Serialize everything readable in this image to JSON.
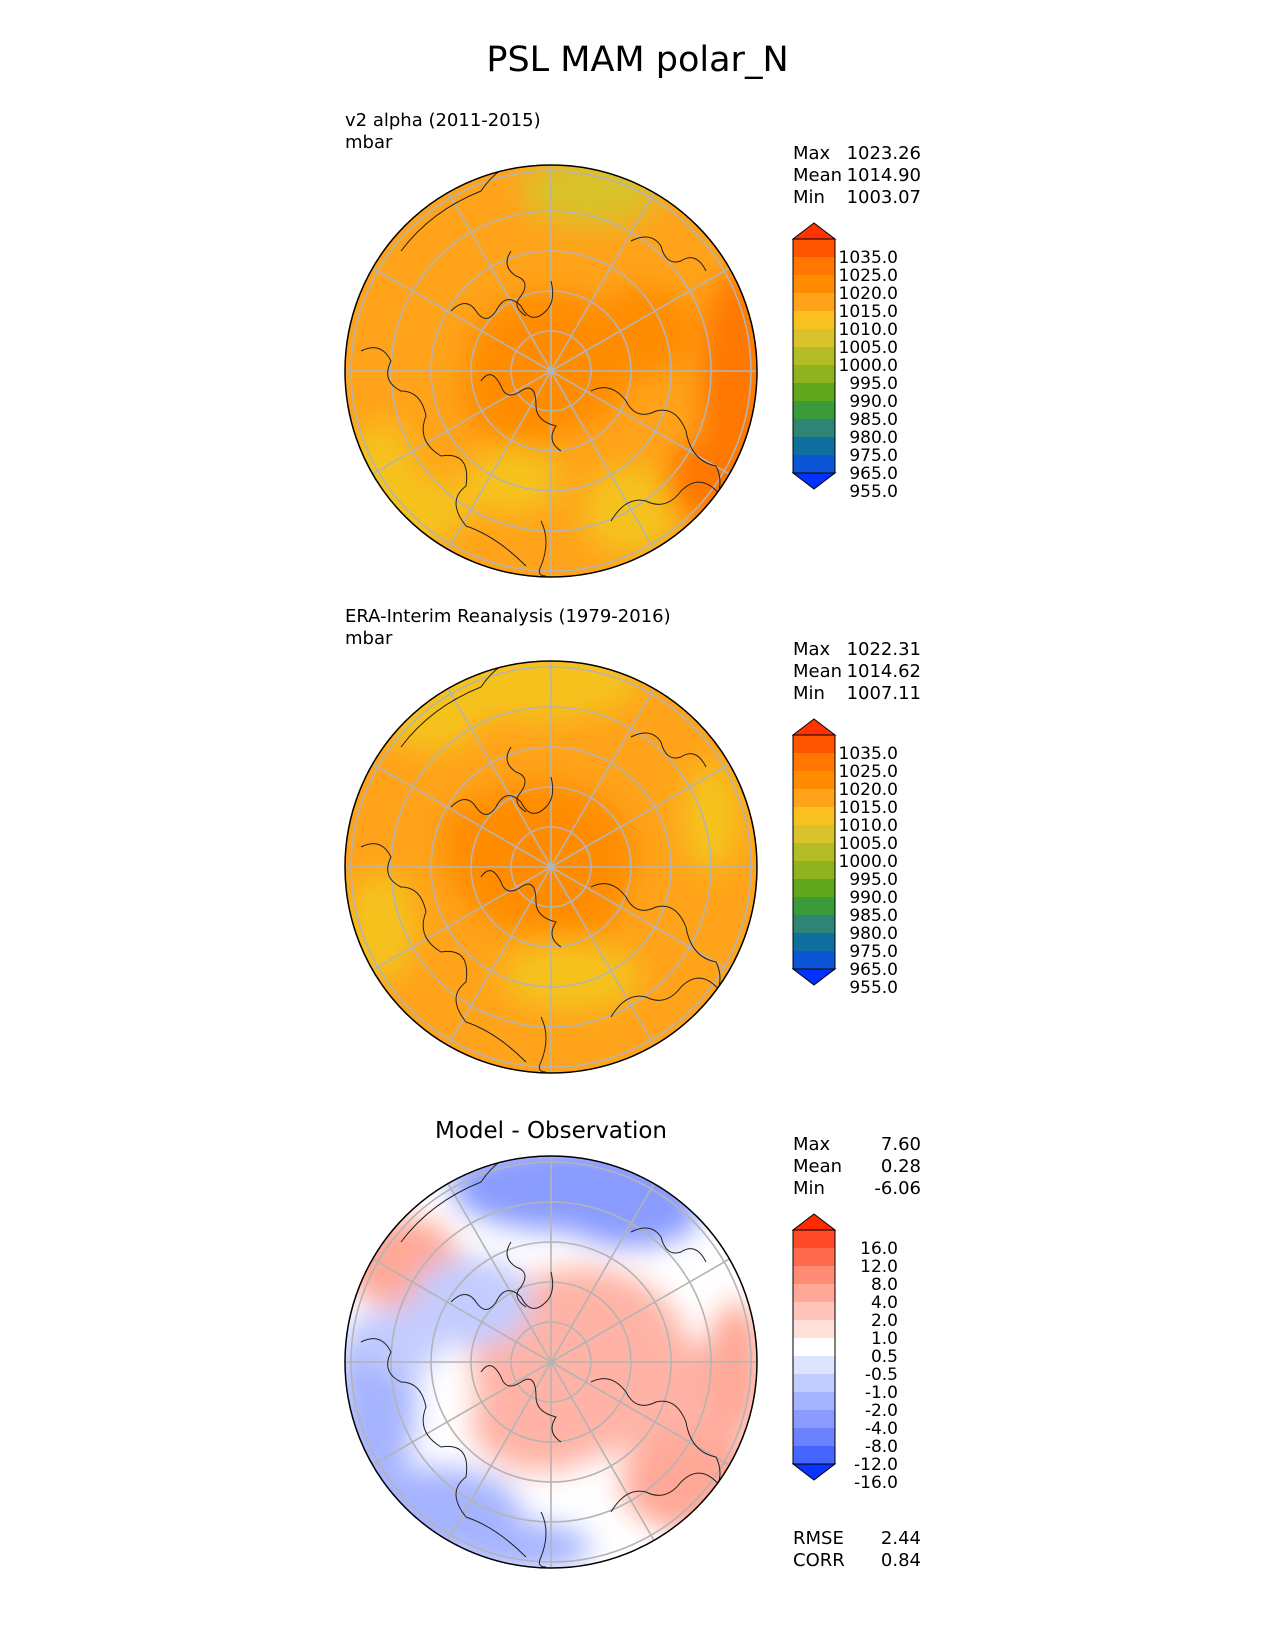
{
  "title": "PSL MAM polar_N",
  "panels": [
    {
      "label_line1": "v2 alpha (2011-2015)",
      "label_line2": "mbar",
      "stats": [
        {
          "name": "Max",
          "value": "1023.26"
        },
        {
          "name": "Mean",
          "value": "1014.90"
        },
        {
          "name": "Min",
          "value": "1003.07"
        }
      ]
    },
    {
      "label_line1": "ERA-Interim Reanalysis (1979-2016)",
      "label_line2": "mbar",
      "stats": [
        {
          "name": "Max",
          "value": "1022.31"
        },
        {
          "name": "Mean",
          "value": "1014.62"
        },
        {
          "name": "Min",
          "value": "1007.11"
        }
      ]
    },
    {
      "title": "Model - Observation",
      "stats": [
        {
          "name": "Max",
          "value": "7.60"
        },
        {
          "name": "Mean",
          "value": "0.28"
        },
        {
          "name": "Min",
          "value": "-6.06"
        }
      ],
      "metrics": [
        {
          "name": "RMSE",
          "value": "2.44"
        },
        {
          "name": "CORR",
          "value": "0.84"
        }
      ]
    }
  ],
  "chart_data": [
    {
      "type": "heatmap",
      "projection": "north-polar-stereographic",
      "title": "v2 alpha (2011-2015)",
      "units": "mbar",
      "stats": {
        "max": 1023.26,
        "mean": 1014.9,
        "min": 1003.07
      },
      "colorbar": {
        "tick_labels": [
          "1035.0",
          "1025.0",
          "1020.0",
          "1015.0",
          "1010.0",
          "1005.0",
          "1000.0",
          "995.0",
          "990.0",
          "985.0",
          "980.0",
          "975.0",
          "965.0",
          "955.0"
        ],
        "colors": [
          "#ff3300",
          "#ff5500",
          "#ff7700",
          "#ff8c00",
          "#ffa31a",
          "#f9c21f",
          "#d9c22a",
          "#b5bd26",
          "#8fb31f",
          "#62a61c",
          "#3a9b3a",
          "#2f8575",
          "#0e6f9f",
          "#0b55d6",
          "#0033ff"
        ]
      },
      "fields": [
        {
          "region": "background",
          "color": "#ffa31a"
        },
        {
          "region": "arctic-high",
          "color": "#ff8c00"
        },
        {
          "region": "north-pacific-band",
          "color": "#f5c21f"
        },
        {
          "region": "north-atlantic-band",
          "color": "#f5c21f"
        },
        {
          "region": "central-asia-high",
          "color": "#ff7700"
        },
        {
          "region": "top-edge",
          "color": "#d9c22a"
        }
      ]
    },
    {
      "type": "heatmap",
      "projection": "north-polar-stereographic",
      "title": "ERA-Interim Reanalysis (1979-2016)",
      "units": "mbar",
      "stats": {
        "max": 1022.31,
        "mean": 1014.62,
        "min": 1007.11
      },
      "colorbar": {
        "tick_labels": [
          "1035.0",
          "1025.0",
          "1020.0",
          "1015.0",
          "1010.0",
          "1005.0",
          "1000.0",
          "995.0",
          "990.0",
          "985.0",
          "980.0",
          "975.0",
          "965.0",
          "955.0"
        ],
        "colors": [
          "#ff3300",
          "#ff5500",
          "#ff7700",
          "#ff8c00",
          "#ffa31a",
          "#f9c21f",
          "#d9c22a",
          "#b5bd26",
          "#8fb31f",
          "#62a61c",
          "#3a9b3a",
          "#2f8575",
          "#0e6f9f",
          "#0b55d6",
          "#0033ff"
        ]
      },
      "fields": [
        {
          "region": "background",
          "color": "#ffa31a"
        },
        {
          "region": "arctic-high",
          "color": "#ff8c00"
        },
        {
          "region": "top-edge",
          "color": "#f5c21f"
        },
        {
          "region": "pacific-patch",
          "color": "#f5c21f"
        },
        {
          "region": "atlantic-patch",
          "color": "#f5c21f"
        }
      ]
    },
    {
      "type": "heatmap",
      "projection": "north-polar-stereographic",
      "title": "Model - Observation",
      "stats": {
        "max": 7.6,
        "mean": 0.28,
        "min": -6.06,
        "rmse": 2.44,
        "corr": 0.84
      },
      "colorbar": {
        "tick_labels": [
          "16.0",
          "12.0",
          "8.0",
          "4.0",
          "2.0",
          "1.0",
          "0.5",
          "-0.5",
          "-1.0",
          "-2.0",
          "-4.0",
          "-8.0",
          "-12.0",
          "-16.0"
        ],
        "colors": [
          "#ff2a00",
          "#ff4a2a",
          "#ff6a4e",
          "#ff8b72",
          "#ffa897",
          "#ffc4b8",
          "#ffe1da",
          "#ffffff",
          "#dde4ff",
          "#c2ccff",
          "#a6b4ff",
          "#899bff",
          "#6b82ff",
          "#4466ff",
          "#0a33ff"
        ]
      },
      "fields": [
        {
          "region": "background",
          "color": "#ffffff"
        },
        {
          "region": "arctic-positive",
          "color": "#ffb3a6"
        },
        {
          "region": "pacific-negative",
          "color": "#899bff"
        },
        {
          "region": "atlantic-negative",
          "color": "#a6b4ff"
        },
        {
          "region": "eurasia-positive",
          "color": "#ffa897"
        },
        {
          "region": "north-america-negative",
          "color": "#c2ccff"
        }
      ]
    }
  ],
  "colors": {
    "grid": "#b4b4b4",
    "coast": "#222222",
    "outline": "#000000"
  }
}
